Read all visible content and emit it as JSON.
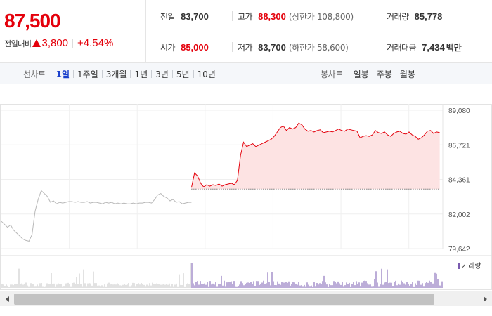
{
  "summary": {
    "current_price": "87,500",
    "change_label": "전일대비",
    "change_value": "3,800",
    "change_rate": "+4.54%",
    "prev_close": {
      "label": "전일",
      "value": "83,700"
    },
    "high": {
      "label": "고가",
      "value": "88,300",
      "sub": "(상한가 108,800)"
    },
    "volume": {
      "label": "거래량",
      "value": "85,778"
    },
    "open": {
      "label": "시가",
      "value": "85,000"
    },
    "low": {
      "label": "저가",
      "value": "83,700",
      "sub": "(하한가 58,600)"
    },
    "trade_amount": {
      "label": "거래대금",
      "value": "7,434",
      "unit": "백만"
    }
  },
  "tabs": {
    "line_title": "선차트",
    "line_tabs": [
      "1일",
      "1주일",
      "3개월",
      "1년",
      "3년",
      "5년",
      "10년"
    ],
    "line_active_index": 0,
    "candle_title": "봉차트",
    "candle_tabs": [
      "일봉",
      "주봉",
      "월봉"
    ]
  },
  "colors": {
    "up": "#e4000b",
    "prev_day_line": "#b8b8b8",
    "today_fill": "#fde3e3",
    "volume_prev": "#c4c4c4",
    "volume_today": "#7a5bb0",
    "active_tab": "#1a40cc"
  },
  "chart_data": {
    "type": "line",
    "yticks": [
      "89,080",
      "86,721",
      "84,361",
      "82,002",
      "79,642"
    ],
    "ylim": [
      79642,
      89080
    ],
    "reference_line": 83700,
    "volume_legend": "거래량",
    "grid": true,
    "series": [
      {
        "values": [
          81500,
          81300,
          81100,
          81250,
          80900,
          80700,
          80500,
          80300,
          80200,
          80150,
          80600,
          82200,
          83000,
          83600,
          83400,
          83200,
          82800,
          82900,
          82700,
          82800,
          82750,
          82800,
          82850,
          82850,
          82800,
          82850,
          82800,
          82800,
          82850,
          82750,
          82800,
          82800,
          82750,
          82700,
          82800,
          82750,
          82800,
          82700,
          82750,
          82700,
          82750,
          82700,
          82700,
          82750,
          82700,
          82750,
          82750,
          82800,
          82800,
          82750,
          83000,
          83300,
          83400,
          83200,
          83100,
          82900,
          83000,
          82800,
          82850,
          82700,
          82750,
          82800,
          82800
        ]
      },
      {
        "values": [
          83800,
          84800,
          84600,
          84100,
          83850,
          84000,
          83900,
          84000,
          83950,
          84050,
          83900,
          84000,
          84050,
          84100,
          84000,
          84300,
          86000,
          86900,
          86600,
          86700,
          86800,
          86600,
          86700,
          86800,
          86900,
          87000,
          87100,
          87300,
          87600,
          87900,
          88000,
          87700,
          87900,
          87800,
          87900,
          88200,
          88100,
          87800,
          87650,
          87700,
          87600,
          87700,
          87750,
          87550,
          87600,
          87650,
          87600,
          87700,
          87800,
          87700,
          87650,
          87800,
          87750,
          87700,
          87650,
          87200,
          87300,
          87350,
          87300,
          87400,
          87700,
          87550,
          87500,
          87600,
          87400,
          87300,
          87500,
          87600,
          87650,
          87500,
          87450,
          87600,
          87400,
          87300,
          87100,
          87200,
          87400,
          87650,
          87700,
          87500,
          87600,
          87550
        ]
      }
    ]
  }
}
